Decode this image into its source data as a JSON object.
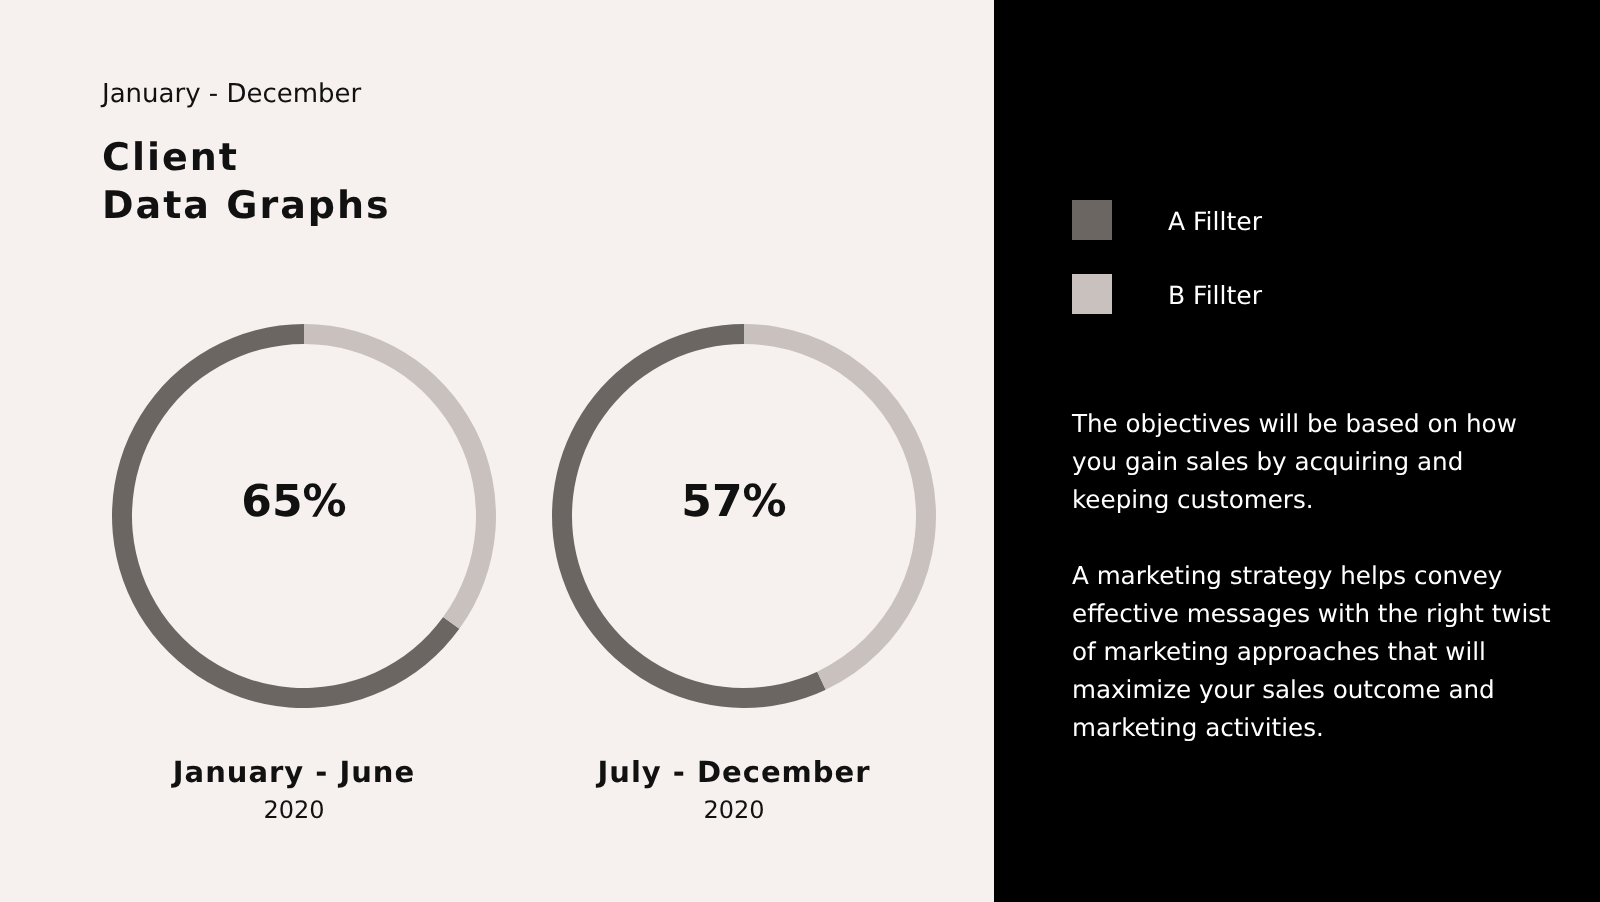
{
  "chart_data": [
    {
      "type": "other",
      "subtitle": "January - December",
      "title": "Client\nData Graphs"
    },
    {
      "type": "donut",
      "title": "January - June",
      "subtitle": "2020",
      "categories": [
        "A Fillter",
        "B Fillter"
      ],
      "values": [
        65,
        35
      ],
      "colors": [
        "#6b6661",
        "#c9c1bd"
      ],
      "value_labels": [
        "65%",
        null
      ],
      "legend": "right"
    },
    {
      "type": "donut",
      "title": "July - December",
      "subtitle": "2020",
      "values": [
        57,
        43
      ],
      "colors": [
        "#6b6661",
        "#c9c1bd"
      ],
      "value_labels": [
        "57%",
        null
      ]
    },
    {
      "type": "other",
      "annotations": [
        "The objectives will be based on how you gain sales by acquiring and keeping customers.",
        "A marketing strategy helps convey effective messages with the right twist of marketing approaches that will maximize your sales outcome and marketing activities."
      ]
    }
  ]
}
